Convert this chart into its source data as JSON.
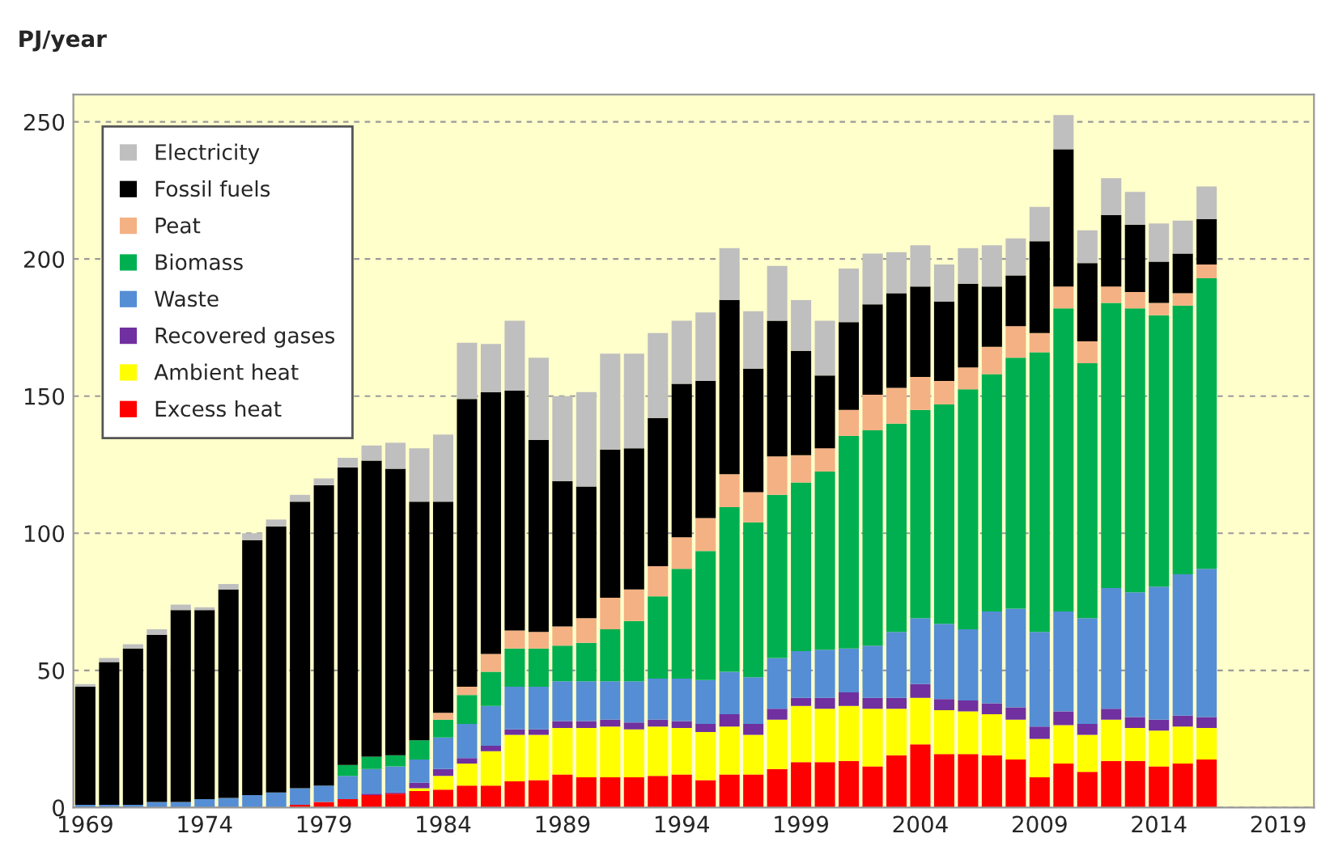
{
  "chart_data": {
    "type": "bar",
    "stacked": true,
    "ylabel": "PJ/year",
    "categories": [
      "1969",
      null,
      null,
      null,
      null,
      "1974",
      null,
      null,
      null,
      null,
      "1979",
      null,
      null,
      null,
      null,
      "1984",
      null,
      null,
      null,
      null,
      "1989",
      null,
      null,
      null,
      null,
      "1994",
      null,
      null,
      null,
      null,
      "1999",
      null,
      null,
      null,
      null,
      "2004",
      null,
      null,
      null,
      null,
      "2009",
      null,
      null,
      null,
      null,
      "2014",
      null,
      null,
      null,
      null,
      "2019",
      null
    ],
    "series": [
      {
        "name": "Excess heat",
        "color": "#ff0000",
        "values": [
          0,
          0,
          0,
          0,
          0,
          0,
          null,
          null,
          null,
          1,
          2,
          3,
          4.5,
          5,
          6,
          6.5,
          8,
          8,
          9.5,
          10,
          12,
          11,
          11,
          11,
          11.5,
          12,
          10,
          12,
          12,
          14,
          16.5,
          16.5,
          17,
          15,
          19,
          23,
          19.5,
          19.5,
          19,
          17.5,
          11,
          16,
          13,
          17,
          17,
          15,
          16,
          17.5,
          null,
          null,
          null,
          null
        ]
      },
      {
        "name": "Ambient heat",
        "color": "#ffff00",
        "values": [
          0,
          0,
          0,
          0,
          0,
          0,
          0,
          0,
          0,
          0,
          0,
          0,
          0,
          0,
          1,
          5,
          8,
          12.5,
          17,
          16.5,
          17,
          18,
          18.5,
          17.5,
          18,
          17,
          17.5,
          17.5,
          14.5,
          18,
          20.5,
          19.5,
          20,
          21,
          17,
          17,
          16,
          15.5,
          15,
          14.5,
          14,
          14,
          13.5,
          15,
          12,
          13,
          13.5,
          11.5,
          null,
          null,
          null,
          null
        ]
      },
      {
        "name": "Recovered gases",
        "color": "#7030a0",
        "values": [
          0,
          0,
          0,
          0,
          0,
          0,
          0,
          0,
          0,
          0,
          0,
          0,
          0.5,
          0.5,
          2,
          2.5,
          2,
          2,
          2,
          2,
          2.5,
          2.5,
          2.5,
          2.5,
          2.5,
          2.5,
          3,
          4.5,
          4,
          4,
          3,
          4,
          5,
          4,
          4,
          5,
          4,
          4,
          4,
          4.5,
          4.5,
          5,
          4,
          4,
          4,
          4,
          4,
          4,
          null,
          null,
          null,
          null
        ]
      },
      {
        "name": "Waste",
        "color": "#558ed5",
        "values": [
          1,
          1,
          1,
          2,
          2,
          3,
          3.5,
          4.5,
          5.5,
          6,
          6,
          8.5,
          9,
          9.5,
          8.5,
          11.5,
          12.5,
          14.5,
          15.5,
          15.5,
          14.5,
          14.5,
          14,
          15,
          15,
          15.5,
          16,
          15.5,
          17,
          18.5,
          17,
          17.5,
          16,
          19,
          24,
          24,
          27.5,
          26,
          33.5,
          36,
          34.5,
          36.5,
          38.5,
          44,
          45.5,
          48.5,
          51.5,
          54,
          null,
          null,
          null,
          null
        ]
      },
      {
        "name": "Biomass",
        "color": "#00b050",
        "values": [
          0,
          0,
          0,
          0,
          0,
          0,
          0,
          0,
          0,
          0,
          0,
          4,
          4.5,
          4,
          7,
          6.5,
          10.5,
          12.5,
          14,
          14,
          13,
          14,
          19,
          22,
          30,
          40,
          47,
          60,
          56.5,
          59.5,
          61.5,
          65,
          77.5,
          78.5,
          76,
          76,
          80,
          87.5,
          86.5,
          91.5,
          102,
          110.5,
          93,
          104,
          103.5,
          99,
          98,
          106,
          null,
          null,
          null,
          null
        ]
      },
      {
        "name": "Peat",
        "color": "#f4b183",
        "values": [
          0,
          0,
          0,
          0,
          0,
          0,
          0,
          0,
          0,
          0,
          0,
          0,
          0,
          0,
          0,
          2.5,
          3,
          6.5,
          6.5,
          6,
          7,
          9,
          11.5,
          11.5,
          11,
          11.5,
          12,
          12,
          11,
          14,
          10,
          8.5,
          9.5,
          13,
          13,
          12,
          8.5,
          8,
          10,
          11.5,
          7,
          8,
          8,
          6,
          6,
          4.5,
          4.5,
          5,
          null,
          null,
          null,
          null
        ]
      },
      {
        "name": "Fossil fuels",
        "color": "#000000",
        "values": [
          43,
          52,
          57,
          61,
          70,
          69,
          76,
          93,
          97,
          104.5,
          109.5,
          108.5,
          108,
          104.5,
          87,
          77,
          105,
          95.5,
          87.5,
          70,
          53,
          48,
          54,
          51.5,
          54,
          56,
          50,
          63.5,
          45,
          49.5,
          38,
          26.5,
          32,
          33,
          34.5,
          33,
          29,
          30.5,
          22,
          18.5,
          33.5,
          50,
          28.5,
          26,
          24.5,
          15,
          14.5,
          16.5,
          null,
          null,
          null,
          null
        ]
      },
      {
        "name": "Electricity",
        "color": "#bfbfbf",
        "values": [
          1,
          1.5,
          1.5,
          2,
          2,
          1,
          2,
          2.5,
          2.5,
          2.5,
          2.5,
          3.5,
          5.5,
          9.5,
          19.5,
          24.5,
          20.5,
          17.5,
          25.5,
          30,
          31,
          34.5,
          35,
          34.5,
          31,
          23,
          25,
          19,
          21,
          20,
          18.5,
          20,
          19.5,
          18.5,
          15,
          15,
          13.5,
          13,
          15,
          13.5,
          12.5,
          12.5,
          12,
          13.5,
          12,
          14,
          12,
          12,
          null,
          null,
          null,
          null
        ]
      }
    ],
    "ylim": [
      0,
      260
    ],
    "yticks": [
      0,
      50,
      100,
      150,
      200,
      250
    ],
    "grid": "y",
    "legend": "top left"
  }
}
